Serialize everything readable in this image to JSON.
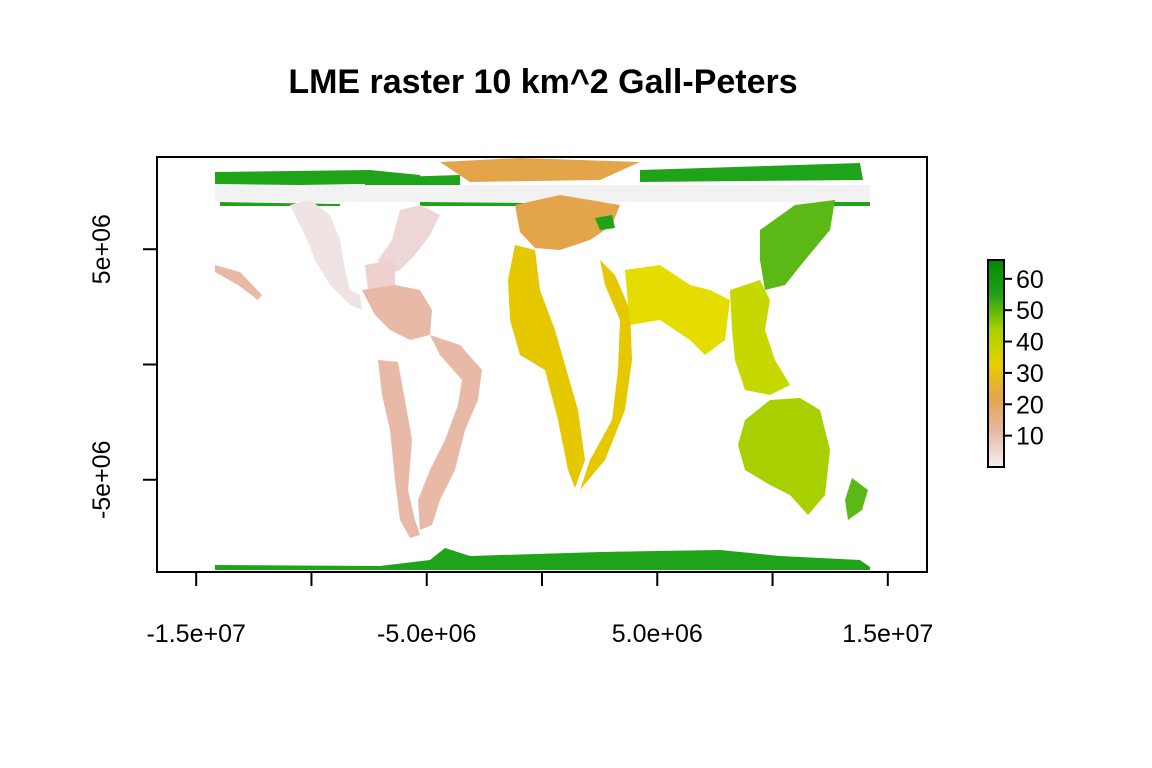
{
  "title": "LME raster 10 km^2 Gall-Peters",
  "map": {
    "xlim": [
      -16700000,
      16700000
    ],
    "ylim": [
      -9000000,
      9000000
    ],
    "x_ticks": [
      {
        "value": -15000000,
        "label": "-1.5e+07"
      },
      {
        "value": -10000000,
        "label": ""
      },
      {
        "value": -5000000,
        "label": "-5.0e+06"
      },
      {
        "value": 0,
        "label": ""
      },
      {
        "value": 5000000,
        "label": "5.0e+06"
      },
      {
        "value": 10000000,
        "label": ""
      },
      {
        "value": 15000000,
        "label": "1.5e+07"
      }
    ],
    "y_ticks": [
      {
        "value": -5000000,
        "label": "-5e+06"
      },
      {
        "value": 0,
        "label": ""
      },
      {
        "value": 5000000,
        "label": "5e+06"
      }
    ],
    "colors": {
      "low": "#f2f2f2",
      "pink": "#e9b9a7",
      "orange": "#e3a44a",
      "yellow": "#e5d000",
      "lime": "#a8d000",
      "green": "#1fa318",
      "frame": "#000000"
    }
  },
  "legend": {
    "min": 0,
    "max": 66,
    "ticks": [
      {
        "value": 10,
        "label": "10"
      },
      {
        "value": 20,
        "label": "20"
      },
      {
        "value": 30,
        "label": "30"
      },
      {
        "value": 40,
        "label": "40"
      },
      {
        "value": 50,
        "label": "50"
      },
      {
        "value": 60,
        "label": "60"
      }
    ],
    "gradient": [
      "#f2f2f2",
      "#e9b9a7",
      "#e3a44a",
      "#e5d000",
      "#a8d000",
      "#1fa318",
      "#008a00"
    ]
  }
}
